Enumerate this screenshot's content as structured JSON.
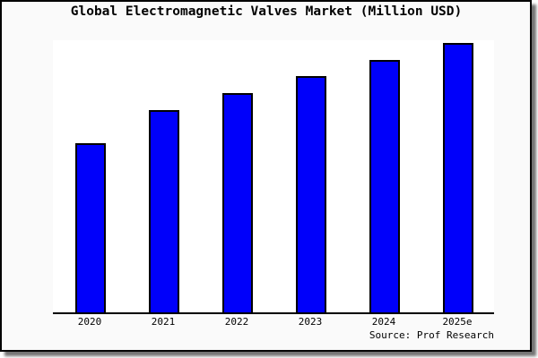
{
  "page": {
    "outer_background": "#fafafa",
    "frame_border_color": "#000000",
    "shadow_color": "#8c8c8c"
  },
  "chart_data": {
    "type": "bar",
    "title": "Global Electromagnetic Valves Market (Million USD)",
    "categories": [
      "2020",
      "2021",
      "2022",
      "2023",
      "2024",
      "2025e"
    ],
    "values": [
      62.8,
      75.1,
      81.4,
      87.7,
      93.7,
      100
    ],
    "value_scale_note": "relative bar heights (percent of tallest bar); no y-axis, gridlines or value labels are shown",
    "xlabel": "",
    "ylabel": "",
    "ylim": [
      0,
      100
    ],
    "grid": false,
    "legend": false,
    "bar_color": "#0000fa",
    "bar_border_color": "#000000",
    "plot_background": "#ffffff",
    "source_note": "Source: Prof Research"
  }
}
